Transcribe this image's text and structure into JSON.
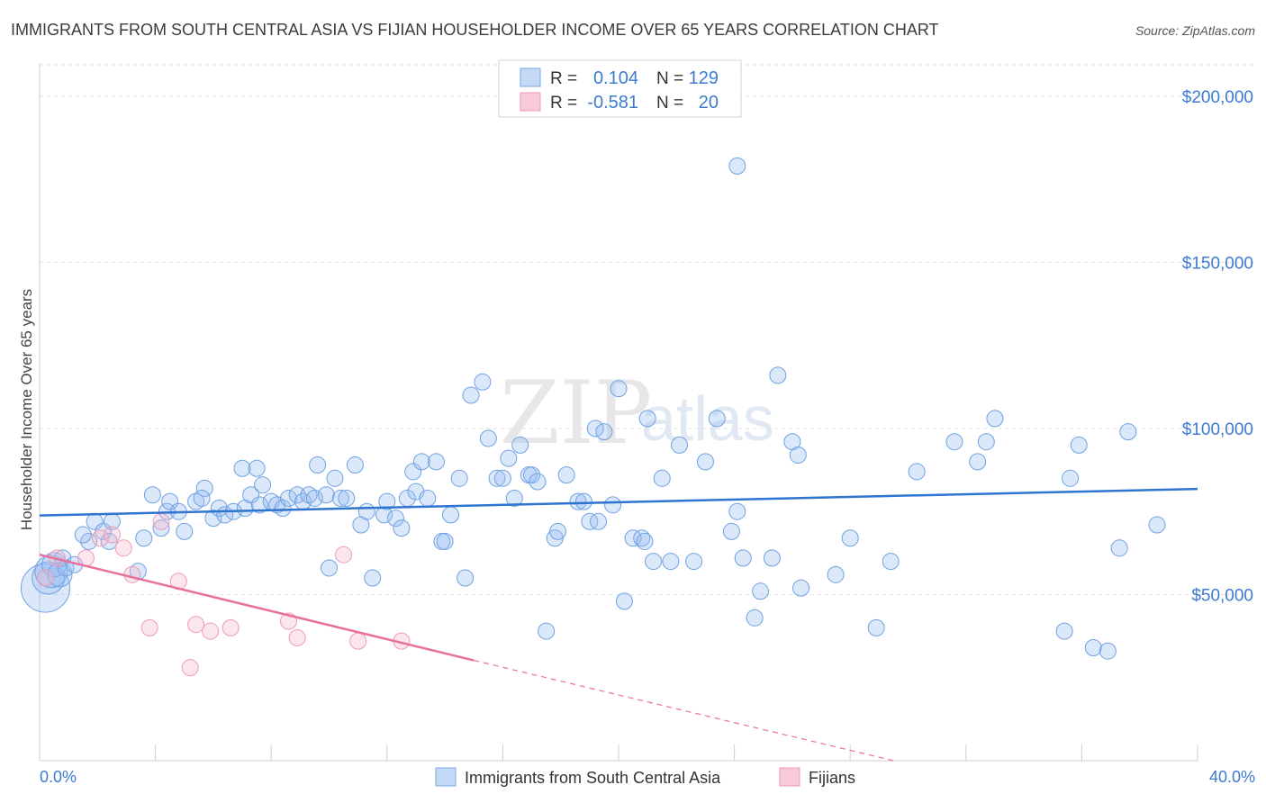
{
  "title": "IMMIGRANTS FROM SOUTH CENTRAL ASIA VS FIJIAN HOUSEHOLDER INCOME OVER 65 YEARS CORRELATION CHART",
  "source": "Source: ZipAtlas.com",
  "watermark": {
    "zip": "ZIP",
    "atlas": "atlas"
  },
  "colors": {
    "blue": "#5b9be6",
    "blue_line": "#2f74cf",
    "pink": "#ef8fb0",
    "pink_line": "#e8709c",
    "axis_text": "#3d7bd0"
  },
  "legend": {
    "rows": [
      {
        "r_label": "R =",
        "r_value": "0.104",
        "n_label": "N =",
        "n_value": "129",
        "color": "blue"
      },
      {
        "r_label": "R =",
        "r_value": "-0.581",
        "n_label": "N =",
        "n_value": "20",
        "color": "pink"
      }
    ]
  },
  "bottom_legend": [
    {
      "label": "Immigrants from South Central Asia",
      "color": "blue"
    },
    {
      "label": "Fijians",
      "color": "pink"
    }
  ],
  "chart_data": {
    "type": "scatter",
    "title": "IMMIGRANTS FROM SOUTH CENTRAL ASIA VS FIJIAN HOUSEHOLDER INCOME OVER 65 YEARS CORRELATION CHART",
    "xlabel": "",
    "ylabel": "Householder Income Over 65 years",
    "xlim": [
      0,
      40
    ],
    "ylim": [
      0,
      210000
    ],
    "x_tick_labels": [
      "0.0%",
      "40.0%"
    ],
    "y_ticks": [
      50000,
      100000,
      150000,
      200000
    ],
    "y_tick_labels": [
      "$50,000",
      "$100,000",
      "$150,000",
      "$200,000"
    ],
    "grid": true,
    "legend_position": "top-center",
    "series": [
      {
        "name": "Immigrants from South Central Asia",
        "trend": {
          "x": [
            0,
            40
          ],
          "y": [
            73800,
            81800
          ]
        },
        "points": [
          [
            0.2,
            52000,
            3
          ],
          [
            0.3,
            55000,
            2
          ],
          [
            0.4,
            57000,
            2
          ],
          [
            0.5,
            59000,
            1.5
          ],
          [
            0.7,
            56000,
            1.5
          ],
          [
            0.8,
            61000,
            1
          ],
          [
            0.9,
            58000,
            1
          ],
          [
            1.2,
            59000,
            1
          ],
          [
            1.7,
            66000,
            1
          ],
          [
            1.5,
            68000,
            1
          ],
          [
            1.9,
            72000,
            1
          ],
          [
            2.2,
            69000,
            1
          ],
          [
            2.5,
            72000,
            1
          ],
          [
            2.4,
            66000,
            1
          ],
          [
            3.4,
            57000,
            1
          ],
          [
            3.6,
            67000,
            1
          ],
          [
            3.9,
            80000,
            1
          ],
          [
            4.2,
            70000,
            1
          ],
          [
            4.4,
            75000,
            1
          ],
          [
            4.5,
            78000,
            1
          ],
          [
            4.8,
            75000,
            1
          ],
          [
            5.0,
            69000,
            1
          ],
          [
            5.4,
            78000,
            1
          ],
          [
            5.7,
            82000,
            1
          ],
          [
            5.6,
            79000,
            1
          ],
          [
            6.0,
            73000,
            1
          ],
          [
            6.2,
            76000,
            1
          ],
          [
            6.4,
            74000,
            1
          ],
          [
            6.7,
            75000,
            1
          ],
          [
            7.1,
            76000,
            1
          ],
          [
            7.0,
            88000,
            1
          ],
          [
            7.3,
            80000,
            1
          ],
          [
            7.6,
            77000,
            1
          ],
          [
            7.5,
            88000,
            1
          ],
          [
            7.7,
            83000,
            1
          ],
          [
            8.0,
            78000,
            1
          ],
          [
            8.2,
            77000,
            1
          ],
          [
            8.4,
            76000,
            1
          ],
          [
            8.6,
            79000,
            1
          ],
          [
            8.9,
            80000,
            1
          ],
          [
            9.1,
            78000,
            1
          ],
          [
            9.3,
            80000,
            1
          ],
          [
            9.5,
            79000,
            1
          ],
          [
            9.6,
            89000,
            1
          ],
          [
            9.9,
            80000,
            1
          ],
          [
            10.2,
            85000,
            1
          ],
          [
            10.4,
            79000,
            1
          ],
          [
            10.6,
            79000,
            1
          ],
          [
            10.9,
            89000,
            1
          ],
          [
            10.0,
            58000,
            1
          ],
          [
            11.1,
            71000,
            1
          ],
          [
            11.3,
            75000,
            1
          ],
          [
            11.5,
            55000,
            1
          ],
          [
            11.9,
            74000,
            1
          ],
          [
            12.0,
            78000,
            1
          ],
          [
            12.3,
            73000,
            1
          ],
          [
            12.5,
            70000,
            1
          ],
          [
            12.7,
            79000,
            1
          ],
          [
            12.9,
            87000,
            1
          ],
          [
            13.0,
            81000,
            1
          ],
          [
            13.2,
            90000,
            1
          ],
          [
            13.4,
            79000,
            1
          ],
          [
            13.7,
            90000,
            1
          ],
          [
            13.9,
            66000,
            1
          ],
          [
            14.0,
            66000,
            1
          ],
          [
            14.2,
            74000,
            1
          ],
          [
            14.5,
            85000,
            1
          ],
          [
            14.7,
            55000,
            1
          ],
          [
            14.9,
            110000,
            1
          ],
          [
            15.3,
            114000,
            1
          ],
          [
            15.5,
            97000,
            1
          ],
          [
            15.8,
            85000,
            1
          ],
          [
            16.0,
            85000,
            1
          ],
          [
            16.2,
            91000,
            1
          ],
          [
            16.4,
            79000,
            1
          ],
          [
            16.6,
            95000,
            1
          ],
          [
            16.9,
            86000,
            1
          ],
          [
            17.0,
            86000,
            1
          ],
          [
            17.2,
            84000,
            1
          ],
          [
            17.5,
            39000,
            1
          ],
          [
            17.8,
            67000,
            1
          ],
          [
            17.9,
            69000,
            1
          ],
          [
            18.2,
            86000,
            1
          ],
          [
            18.6,
            78000,
            1
          ],
          [
            18.8,
            78000,
            1
          ],
          [
            19.0,
            72000,
            1
          ],
          [
            19.2,
            100000,
            1
          ],
          [
            19.3,
            72000,
            1
          ],
          [
            19.5,
            99000,
            1
          ],
          [
            19.8,
            77000,
            1
          ],
          [
            20.0,
            112000,
            1
          ],
          [
            20.2,
            48000,
            1
          ],
          [
            20.5,
            67000,
            1
          ],
          [
            20.8,
            67000,
            1
          ],
          [
            20.9,
            66000,
            1
          ],
          [
            21.0,
            103000,
            1
          ],
          [
            21.2,
            60000,
            1
          ],
          [
            21.5,
            85000,
            1
          ],
          [
            21.8,
            60000,
            1
          ],
          [
            22.1,
            95000,
            1
          ],
          [
            22.6,
            60000,
            1
          ],
          [
            23.0,
            90000,
            1
          ],
          [
            23.4,
            103000,
            1
          ],
          [
            23.9,
            69000,
            1
          ],
          [
            24.1,
            75000,
            1
          ],
          [
            24.1,
            179000,
            1
          ],
          [
            24.3,
            61000,
            1
          ],
          [
            24.7,
            43000,
            1
          ],
          [
            24.9,
            51000,
            1
          ],
          [
            25.3,
            61000,
            1
          ],
          [
            25.5,
            116000,
            1
          ],
          [
            26.0,
            96000,
            1
          ],
          [
            26.2,
            92000,
            1
          ],
          [
            26.3,
            52000,
            1
          ],
          [
            27.5,
            56000,
            1
          ],
          [
            28.0,
            67000,
            1
          ],
          [
            28.9,
            40000,
            1
          ],
          [
            29.4,
            60000,
            1
          ],
          [
            30.3,
            87000,
            1
          ],
          [
            31.6,
            96000,
            1
          ],
          [
            32.4,
            90000,
            1
          ],
          [
            32.7,
            96000,
            1
          ],
          [
            33.0,
            103000,
            1
          ],
          [
            35.4,
            39000,
            1
          ],
          [
            35.6,
            85000,
            1
          ],
          [
            35.9,
            95000,
            1
          ],
          [
            36.4,
            34000,
            1
          ],
          [
            36.9,
            33000,
            1
          ],
          [
            37.3,
            64000,
            1
          ],
          [
            37.6,
            99000,
            1
          ],
          [
            38.6,
            71000,
            1
          ]
        ]
      },
      {
        "name": "Fijians",
        "trend": {
          "x": [
            0,
            15
          ],
          "y": [
            62000,
            30200
          ]
        },
        "trend_extended": {
          "x": [
            15,
            29.5
          ],
          "y": [
            30200,
            0
          ]
        },
        "points": [
          [
            0.2,
            55000,
            1
          ],
          [
            0.6,
            61000,
            1
          ],
          [
            1.6,
            61000,
            1
          ],
          [
            2.1,
            67000,
            1
          ],
          [
            2.5,
            68000,
            1
          ],
          [
            2.9,
            64000,
            1
          ],
          [
            3.2,
            56000,
            1
          ],
          [
            3.8,
            40000,
            1
          ],
          [
            4.2,
            72000,
            1
          ],
          [
            4.8,
            54000,
            1
          ],
          [
            5.2,
            28000,
            1
          ],
          [
            5.4,
            41000,
            1
          ],
          [
            5.9,
            39000,
            1
          ],
          [
            6.6,
            40000,
            1
          ],
          [
            8.6,
            42000,
            1
          ],
          [
            8.9,
            37000,
            1
          ],
          [
            10.5,
            62000,
            1
          ],
          [
            11.0,
            36000,
            1
          ],
          [
            12.5,
            36000,
            1
          ]
        ]
      }
    ]
  }
}
